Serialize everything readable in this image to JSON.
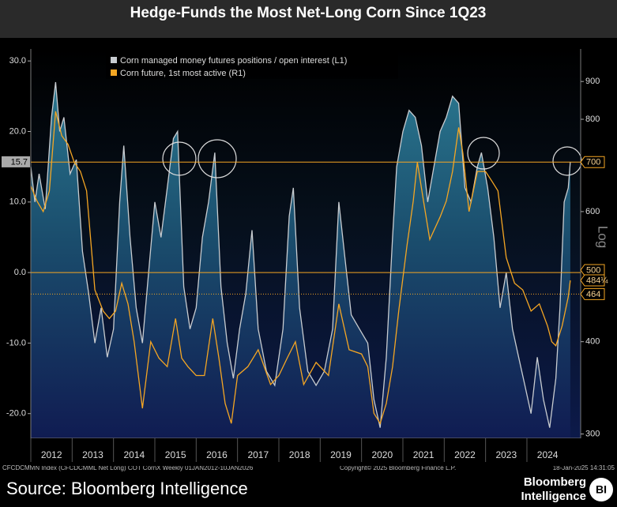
{
  "chart_data": {
    "type": "line",
    "title": "Hedge-Funds the Most Net-Long Corn Since 1Q23",
    "series": [
      {
        "name": "Corn managed money futures positions / open interest (L1)",
        "color": "#c8ccd0",
        "axis": "y",
        "x": [
          2012.0,
          2012.1,
          2012.2,
          2012.35,
          2012.5,
          2012.6,
          2012.7,
          2012.8,
          2012.95,
          2013.1,
          2013.25,
          2013.4,
          2013.55,
          2013.7,
          2013.85,
          2014.0,
          2014.15,
          2014.25,
          2014.4,
          2014.55,
          2014.7,
          2014.85,
          2015.0,
          2015.15,
          2015.3,
          2015.45,
          2015.55,
          2015.7,
          2015.85,
          2016.0,
          2016.15,
          2016.3,
          2016.45,
          2016.6,
          2016.75,
          2016.9,
          2017.05,
          2017.2,
          2017.35,
          2017.5,
          2017.7,
          2017.9,
          2018.1,
          2018.25,
          2018.35,
          2018.5,
          2018.7,
          2018.9,
          2019.1,
          2019.3,
          2019.45,
          2019.6,
          2019.75,
          2019.95,
          2020.15,
          2020.3,
          2020.45,
          2020.6,
          2020.75,
          2020.85,
          2021.0,
          2021.15,
          2021.3,
          2021.45,
          2021.6,
          2021.75,
          2021.9,
          2022.05,
          2022.2,
          2022.35,
          2022.5,
          2022.65,
          2022.8,
          2022.9,
          2023.05,
          2023.2,
          2023.35,
          2023.5,
          2023.65,
          2023.8,
          2023.95,
          2024.1,
          2024.25,
          2024.4,
          2024.55,
          2024.7,
          2024.8,
          2024.9,
          2025.0,
          2025.05
        ],
        "values": [
          15,
          10,
          14,
          9,
          22,
          27,
          20,
          22,
          14,
          16,
          3,
          -3,
          -10,
          -5,
          -12,
          -8,
          10,
          18,
          5,
          -5,
          -10,
          0,
          10,
          5,
          12,
          19,
          20,
          -2,
          -8,
          -5,
          5,
          10,
          17,
          -2,
          -10,
          -15,
          -8,
          -3,
          6,
          -8,
          -14,
          -16,
          -8,
          8,
          12,
          -5,
          -14,
          -16,
          -14,
          -8,
          10,
          2,
          -6,
          -8,
          -10,
          -18,
          -22,
          -12,
          5,
          15,
          20,
          23,
          22,
          18,
          10,
          15,
          20,
          22,
          25,
          24,
          12,
          10,
          15,
          17,
          12,
          5,
          -5,
          0,
          -8,
          -12,
          -16,
          -20,
          -12,
          -18,
          -22,
          -15,
          -5,
          10,
          12,
          15.7
        ]
      },
      {
        "name": "Corn future, 1st most active (R1)",
        "color": "#f5a623",
        "axis": "y2",
        "x": [
          2012.0,
          2012.15,
          2012.3,
          2012.45,
          2012.6,
          2012.75,
          2012.9,
          2013.05,
          2013.2,
          2013.35,
          2013.55,
          2013.75,
          2013.9,
          2014.05,
          2014.2,
          2014.35,
          2014.5,
          2014.7,
          2014.9,
          2015.1,
          2015.3,
          2015.5,
          2015.65,
          2015.8,
          2016.0,
          2016.2,
          2016.4,
          2016.55,
          2016.7,
          2016.85,
          2017.0,
          2017.25,
          2017.5,
          2017.8,
          2018.0,
          2018.2,
          2018.4,
          2018.6,
          2018.9,
          2019.2,
          2019.45,
          2019.7,
          2020.0,
          2020.15,
          2020.3,
          2020.45,
          2020.6,
          2020.75,
          2020.9,
          2021.1,
          2021.25,
          2021.35,
          2021.5,
          2021.65,
          2021.9,
          2022.05,
          2022.2,
          2022.35,
          2022.45,
          2022.6,
          2022.8,
          2023.0,
          2023.15,
          2023.3,
          2023.5,
          2023.7,
          2023.9,
          2024.1,
          2024.3,
          2024.5,
          2024.6,
          2024.7,
          2024.85,
          2025.0,
          2025.05
        ],
        "values": [
          650,
          620,
          600,
          640,
          820,
          760,
          740,
          700,
          680,
          640,
          470,
          440,
          430,
          440,
          480,
          450,
          400,
          325,
          400,
          380,
          370,
          430,
          380,
          370,
          360,
          360,
          430,
          380,
          330,
          310,
          360,
          370,
          390,
          350,
          360,
          380,
          400,
          350,
          375,
          360,
          450,
          390,
          385,
          370,
          320,
          310,
          330,
          370,
          440,
          540,
          620,
          700,
          620,
          550,
          590,
          620,
          680,
          780,
          720,
          600,
          680,
          680,
          660,
          640,
          520,
          480,
          470,
          440,
          450,
          420,
          400,
          395,
          420,
          460,
          484.25
        ]
      }
    ],
    "xlim": [
      2012,
      2025.3
    ],
    "xticks": [
      2012,
      2013,
      2014,
      2015,
      2016,
      2017,
      2018,
      2019,
      2020,
      2021,
      2022,
      2023,
      2024
    ],
    "ylim": [
      -23.5,
      31.7
    ],
    "yticks": [
      {
        "value": 30,
        "label": "30.0"
      },
      {
        "value": 20,
        "label": "20.0"
      },
      {
        "value": 10,
        "label": "10.0"
      },
      {
        "value": 0,
        "label": "0.0"
      },
      {
        "value": -10,
        "label": "-10.0"
      },
      {
        "value": -20,
        "label": "-20.0"
      }
    ],
    "y2lim": [
      296,
      996
    ],
    "y2ticks": [
      300,
      400,
      500,
      600,
      700,
      800,
      900
    ],
    "y2scale": "log",
    "y2_label": "Log",
    "ref_lines": [
      {
        "axis": "y2",
        "value": 700,
        "style": "solid"
      },
      {
        "axis": "y",
        "value": 0,
        "style": "solid"
      },
      {
        "axis": "y2",
        "value": 464,
        "style": "dotted"
      }
    ],
    "tags": [
      {
        "axis": "y",
        "value": 15.7
      },
      {
        "axis": "y2",
        "value": 700
      },
      {
        "axis": "y2",
        "value": 500
      },
      {
        "axis": "y2",
        "value": 484.25,
        "label": "484¼"
      },
      {
        "axis": "y2",
        "value": 464
      }
    ],
    "footer_left": "CFCDCMMN Index (CFCDCMML Net Long) COT CornX  Weekly 01JAN2012-10JAN2026",
    "footer_mid": "Copyright© 2025 Bloomberg Finance L.P.",
    "footer_right": "18-Jan-2025 14:31:05",
    "source": "Source: Bloomberg Intelligence",
    "logo_line1": "Bloomberg",
    "logo_line2": "Intelligence",
    "logo_badge": "BI"
  }
}
